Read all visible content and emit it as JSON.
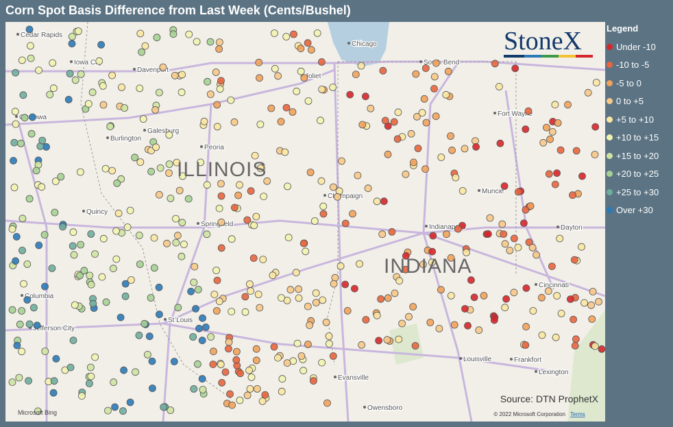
{
  "title": "Corn Spot Basis Difference from Last Week (Cents/Bushel)",
  "legend": {
    "title": "Legend",
    "items": [
      {
        "label": "Under -10",
        "color": "#d7262a"
      },
      {
        "label": "-10 to -5",
        "color": "#e8653e"
      },
      {
        "label": "-5 to 0",
        "color": "#f2a25a"
      },
      {
        "label": "0 to +5",
        "color": "#f7c887"
      },
      {
        "label": "+5 to +10",
        "color": "#fbe7a2"
      },
      {
        "label": "+10 to +15",
        "color": "#f3f3b0"
      },
      {
        "label": "+15 to +20",
        "color": "#cfe4a2"
      },
      {
        "label": "+20 to +25",
        "color": "#a6d193"
      },
      {
        "label": "+25 to +30",
        "color": "#6fae9f"
      },
      {
        "label": "Over +30",
        "color": "#2a7ab8"
      }
    ]
  },
  "map": {
    "cities": [
      "Cedar Rapids",
      "Iowa City",
      "Davenport",
      "Ottumwa",
      "Burlington",
      "Galesburg",
      "Peoria",
      "Joliet",
      "Chicago",
      "South Bend",
      "Fort Wayne",
      "Champaign",
      "Springfield",
      "Quincy",
      "Muncie",
      "Indianapolis",
      "Dayton",
      "Columbia",
      "Jefferson City",
      "St Louis",
      "Cincinnati",
      "Louisville",
      "Frankfort",
      "Lexington",
      "Evansville",
      "Owensboro"
    ],
    "states": [
      "ILLINOIS",
      "INDIANA"
    ],
    "highways": [
      "90",
      "88",
      "294",
      "80",
      "90"
    ]
  },
  "source": "Source: DTN ProphetX",
  "copyright": "© 2022 Microsoft Corporation",
  "terms": "Terms",
  "attribution": "Microsoft Bing",
  "logo": "StoneX"
}
